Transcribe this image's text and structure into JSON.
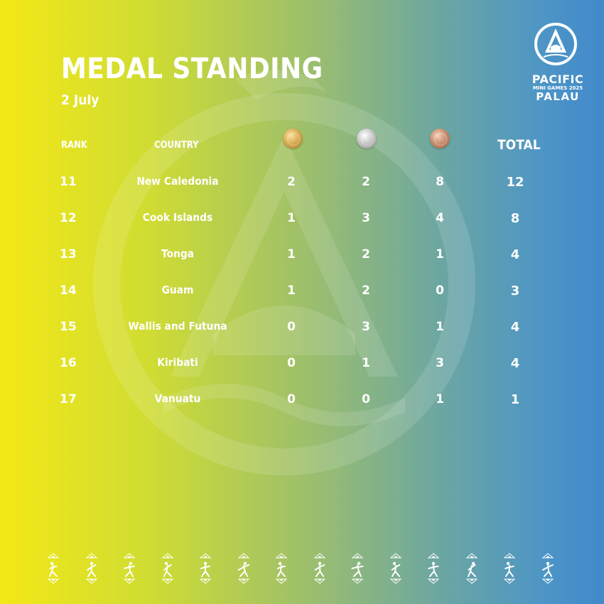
{
  "title": "MEDAL STANDING",
  "date": "2 July",
  "logo": {
    "line1": "PACIFIC",
    "line2": "MINI GAMES 2025",
    "line3": "PALAU"
  },
  "headers": {
    "rank": "RANK",
    "country": "COUNTRY",
    "total": "TOTAL"
  },
  "medal_icons": [
    "gold-medal-icon",
    "silver-medal-icon",
    "bronze-medal-icon"
  ],
  "rows": [
    {
      "rank": "11",
      "country": "New Caledonia",
      "gold": "2",
      "silver": "2",
      "bronze": "8",
      "total": "12"
    },
    {
      "rank": "12",
      "country": "Cook Islands",
      "gold": "1",
      "silver": "3",
      "bronze": "4",
      "total": "8"
    },
    {
      "rank": "13",
      "country": "Tonga",
      "gold": "1",
      "silver": "2",
      "bronze": "1",
      "total": "4"
    },
    {
      "rank": "14",
      "country": "Guam",
      "gold": "1",
      "silver": "2",
      "bronze": "0",
      "total": "3"
    },
    {
      "rank": "15",
      "country": "Wallis and Futuna",
      "gold": "0",
      "silver": "3",
      "bronze": "1",
      "total": "4"
    },
    {
      "rank": "16",
      "country": "Kiribati",
      "gold": "0",
      "silver": "1",
      "bronze": "3",
      "total": "4"
    },
    {
      "rank": "17",
      "country": "Vanuatu",
      "gold": "0",
      "silver": "0",
      "bronze": "1",
      "total": "1"
    }
  ],
  "sport_icons": [
    "archery-icon",
    "athletics-icon",
    "cycling-icon",
    "volleyball-icon",
    "swimming-icon",
    "weightlifting-icon",
    "table-tennis-icon",
    "surfing-icon",
    "tennis-icon",
    "baseball-icon",
    "va'a-icon",
    "football-icon",
    "sailing-icon",
    "wrestling-icon"
  ],
  "colors": {
    "gradient_left": "#f3e817",
    "gradient_mid": "#9fc06a",
    "gradient_right": "#4289cb",
    "text": "#ffffff"
  }
}
